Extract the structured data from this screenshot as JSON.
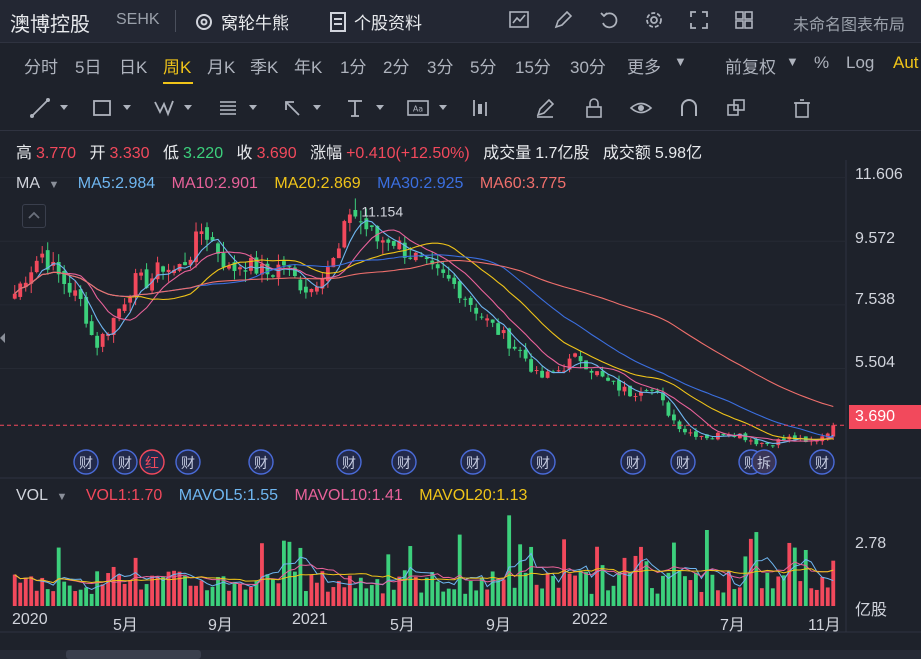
{
  "header": {
    "title": "澳博控股",
    "code": "SEHK",
    "warrants_label": "窝轮牛熊",
    "profile_label": "个股资料",
    "layout_name": "未命名图表布局"
  },
  "periods": [
    "分时",
    "5日",
    "日K",
    "周K",
    "月K",
    "季K",
    "年K",
    "1分",
    "2分",
    "3分",
    "5分",
    "15分",
    "30分",
    "更多"
  ],
  "active_period": "周K",
  "period_right": {
    "adjust": "前复权",
    "percent": "%",
    "log": "Log",
    "auto": "Aut"
  },
  "info": {
    "high_label": "高",
    "high": "3.770",
    "open_label": "开",
    "open": "3.330",
    "low_label": "低",
    "low": "3.220",
    "close_label": "收",
    "close": "3.690",
    "change_label": "涨幅",
    "change": "+0.410(+12.50%)",
    "volume_label": "成交量",
    "volume": "1.7亿股",
    "turnover_label": "成交额",
    "turnover": "5.98亿"
  },
  "ma_legend": {
    "name": "MA",
    "items": [
      {
        "text": "MA5:2.984",
        "color": "#6fb6f0"
      },
      {
        "text": "MA10:2.901",
        "color": "#e8629a"
      },
      {
        "text": "MA20:2.869",
        "color": "#f0c419"
      },
      {
        "text": "MA30:2.925",
        "color": "#3b6fe0"
      },
      {
        "text": "MA60:3.775",
        "color": "#ef6f6c"
      }
    ]
  },
  "vol_legend": {
    "name": "VOL",
    "items": [
      {
        "text": "VOL1:1.70",
        "color": "#f2495c"
      },
      {
        "text": "MAVOL5:1.55",
        "color": "#6fb6f0"
      },
      {
        "text": "MAVOL10:1.41",
        "color": "#e8629a"
      },
      {
        "text": "MAVOL20:1.13",
        "color": "#f0c419"
      }
    ]
  },
  "markers": {
    "fin": "财",
    "div": "红",
    "split": "拆",
    "high_label": "11.154"
  },
  "current_price": "3.690",
  "price_axis": [
    "11.606",
    "9.572",
    "7.538",
    "5.504"
  ],
  "volume_axis": {
    "tick": "2.78",
    "unit": "亿股"
  },
  "time_axis": [
    "2020",
    "5月",
    "9月",
    "2021",
    "5月",
    "9月",
    "2022",
    "7月",
    "11月"
  ],
  "colors": {
    "up": "#f2495c",
    "down": "#3cd07c",
    "background": "#1e222b",
    "accent": "#f0c419"
  },
  "chart_data": {
    "type": "candlestick",
    "period": "weekly",
    "x": [
      "2020",
      "5月",
      "9月",
      "2021",
      "5月",
      "9月",
      "2022",
      "7月",
      "11月"
    ],
    "price_ticks": [
      11.606,
      9.572,
      7.538,
      5.504
    ],
    "ylim": [
      2.9,
      11.85
    ],
    "last_bar": {
      "open": 3.33,
      "high": 3.77,
      "low": 3.22,
      "close": 3.69,
      "volume": 1.7
    },
    "price_path": [
      7.9,
      8.6,
      9.2,
      8.6,
      8.1,
      7.6,
      6.2,
      6.8,
      7.6,
      8.3,
      8.3,
      8.8,
      8.6,
      9.1,
      10.0,
      9.4,
      8.6,
      8.9,
      8.7,
      8.5,
      8.9,
      8.3,
      8.0,
      8.7,
      9.0,
      10.6,
      10.1,
      9.6,
      9.7,
      9.3,
      9.0,
      8.6,
      8.4,
      8.1,
      7.6,
      7.1,
      6.7,
      6.3,
      5.9,
      5.2,
      5.3,
      5.6,
      5.9,
      5.5,
      5.1,
      4.9,
      4.7,
      5.0,
      4.6,
      3.9,
      3.5,
      3.4,
      3.3,
      3.5,
      3.4,
      3.2,
      3.1,
      3.2,
      3.3,
      3.1,
      3.3,
      3.69
    ],
    "ma_periods": [
      5,
      10,
      20,
      30,
      60
    ],
    "ma_last": {
      "MA5": 2.984,
      "MA10": 2.901,
      "MA20": 2.869,
      "MA30": 2.925,
      "MA60": 3.775
    },
    "volume_tick": 2.78,
    "volume_unit": "亿股",
    "mavol_last": {
      "MAVOL5": 1.55,
      "MAVOL10": 1.41,
      "MAVOL20": 1.13
    }
  }
}
